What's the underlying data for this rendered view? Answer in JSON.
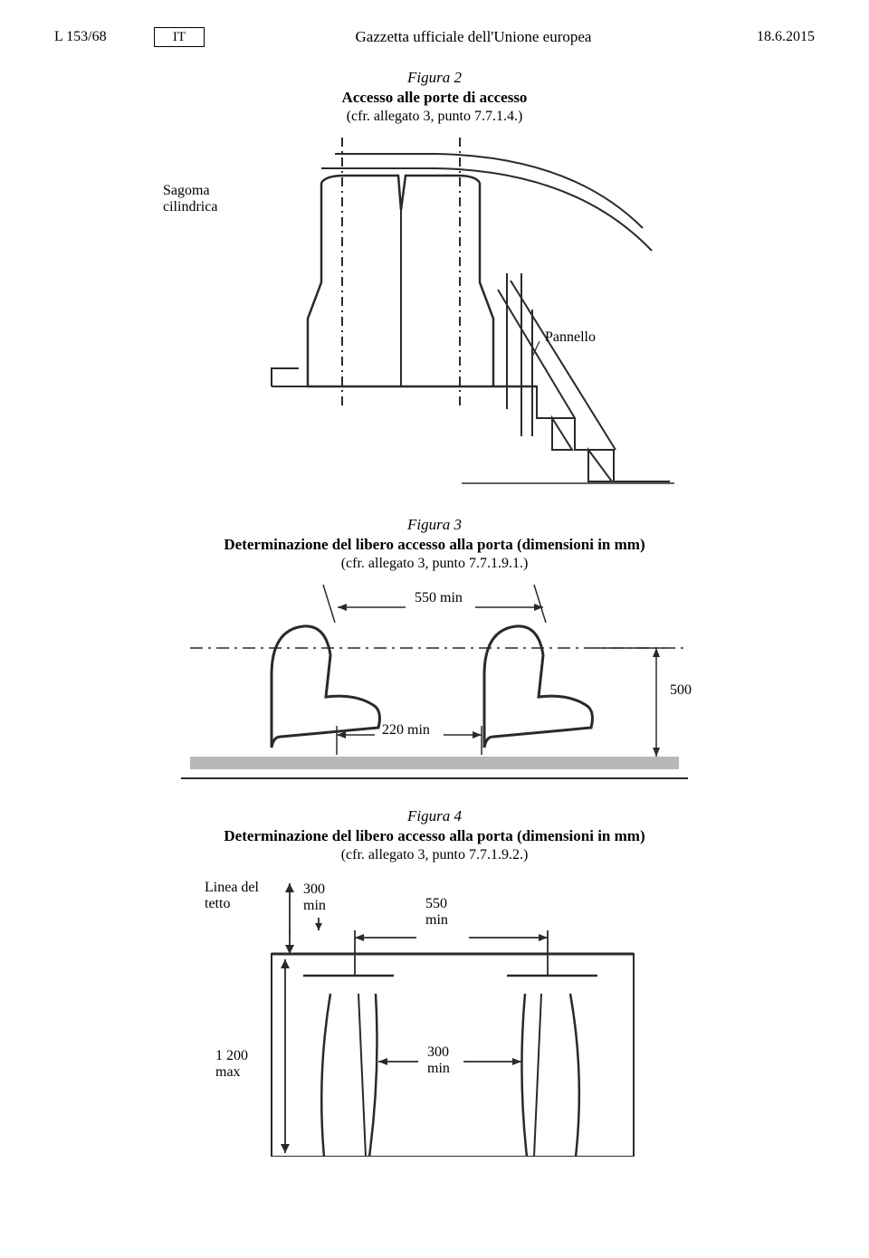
{
  "header": {
    "page_ref": "L 153/68",
    "lang": "IT",
    "journal": "Gazzetta ufficiale dell'Unione europea",
    "date": "18.6.2015"
  },
  "fig2": {
    "num": "Figura 2",
    "title": "Accesso alle porte di accesso",
    "ref": "(cfr. allegato 3, punto 7.7.1.4.)",
    "label_sagoma": "Sagoma\ncilindrica",
    "label_pannello": "Pannello"
  },
  "fig3": {
    "num": "Figura 3",
    "title": "Determinazione del libero accesso alla porta (dimensioni in mm)",
    "ref": "(cfr. allegato 3, punto 7.7.1.9.1.)",
    "dim_550": "550 min",
    "dim_220": "220 min",
    "dim_500": "500"
  },
  "fig4": {
    "num": "Figura 4",
    "title": "Determinazione del libero accesso alla porta (dimensioni in mm)",
    "ref": "(cfr. allegato 3, punto 7.7.1.9.2.)",
    "label_linea": "Linea del\ntetto",
    "dim_300_top": "300\nmin",
    "dim_550": "550\nmin",
    "dim_1200": "1 200\nmax",
    "dim_300_gap": "300\nmin"
  },
  "style": {
    "stroke": "#2a2a2a",
    "stroke_thin": 1.5,
    "stroke_med": 2.0,
    "stroke_thick": 2.5,
    "floor_fill": "#b8b8b8",
    "bg": "#ffffff"
  }
}
